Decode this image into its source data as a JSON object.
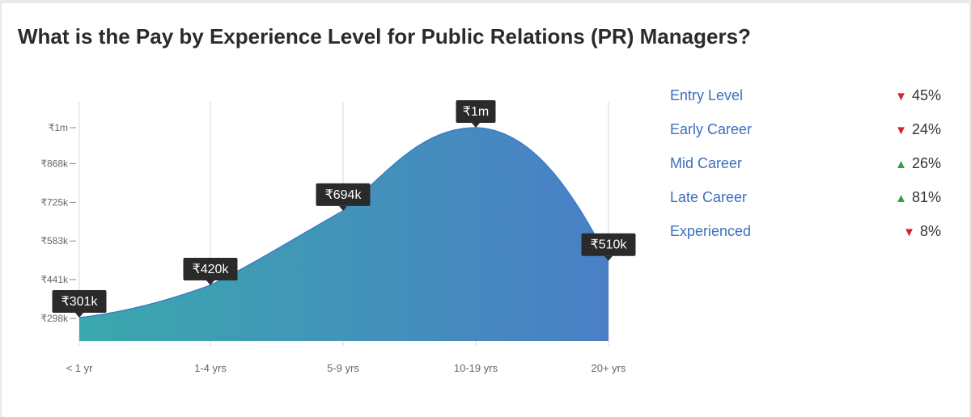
{
  "title": "What is the Pay by Experience Level for Public Relations (PR) Managers?",
  "colors": {
    "gradient_start": "#3aa8ac",
    "gradient_end": "#4a7fc6",
    "line": "#3a7fc4",
    "label_bg": "#2a2a2a",
    "legend_text": "#3a6fbf",
    "down": "#d8232a",
    "up": "#2f9e44"
  },
  "chart_data": {
    "type": "area",
    "title": "What is the Pay by Experience Level for Public Relations (PR) Managers?",
    "categories": [
      "< 1 yr",
      "1-4 yrs",
      "5-9 yrs",
      "10-19 yrs",
      "20+ yrs"
    ],
    "values": [
      301000,
      420000,
      694000,
      1000000,
      510000
    ],
    "data_labels": [
      "₹301k",
      "₹420k",
      "₹694k",
      "₹1m",
      "₹510k"
    ],
    "y_ticks": [
      {
        "value": 298000,
        "label": "₹298k"
      },
      {
        "value": 441000,
        "label": "₹441k"
      },
      {
        "value": 583000,
        "label": "₹583k"
      },
      {
        "value": 725000,
        "label": "₹725k"
      },
      {
        "value": 868000,
        "label": "₹868k"
      },
      {
        "value": 1000000,
        "label": "₹1m"
      }
    ],
    "grid": true,
    "legend_position": "right"
  },
  "legend": [
    {
      "label": "Entry Level",
      "direction": "down",
      "arrow": "▼",
      "delta": "45%"
    },
    {
      "label": "Early Career",
      "direction": "down",
      "arrow": "▼",
      "delta": "24%"
    },
    {
      "label": "Mid Career",
      "direction": "up",
      "arrow": "▲",
      "delta": "26%"
    },
    {
      "label": "Late Career",
      "direction": "up",
      "arrow": "▲",
      "delta": "81%"
    },
    {
      "label": "Experienced",
      "direction": "down",
      "arrow": "▼",
      "delta": "8%"
    }
  ]
}
